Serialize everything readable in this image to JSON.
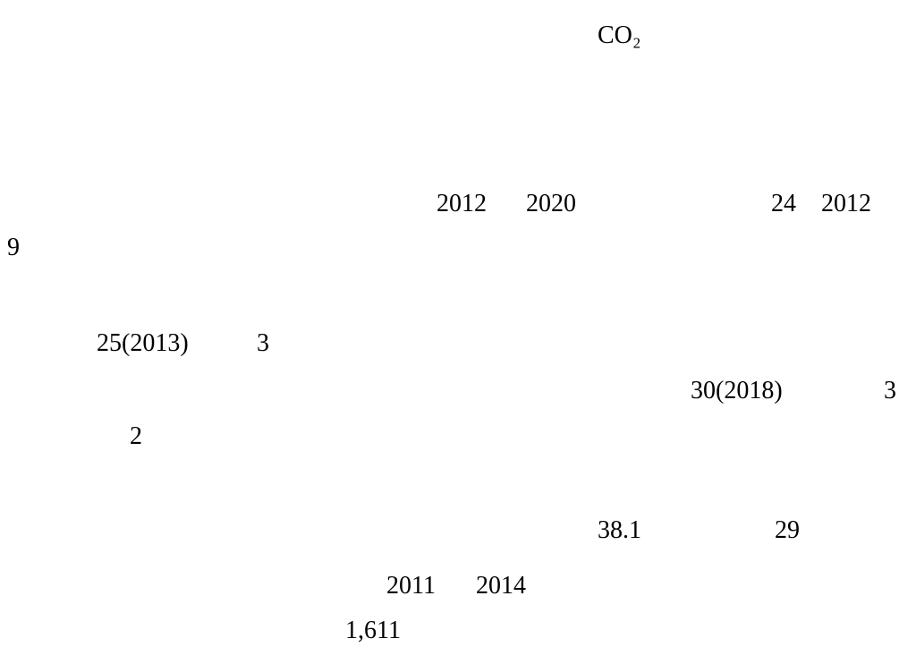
{
  "document": {
    "heading": "CO₂",
    "paragraphs": [
      [
        "2012",
        "2020",
        "24",
        "2012",
        "9"
      ],
      [
        "25(2013)",
        "3",
        "30(2018)",
        "3",
        "2"
      ],
      [
        "38.1",
        "29"
      ],
      [
        "2011",
        "2014",
        "1,611"
      ]
    ]
  }
}
